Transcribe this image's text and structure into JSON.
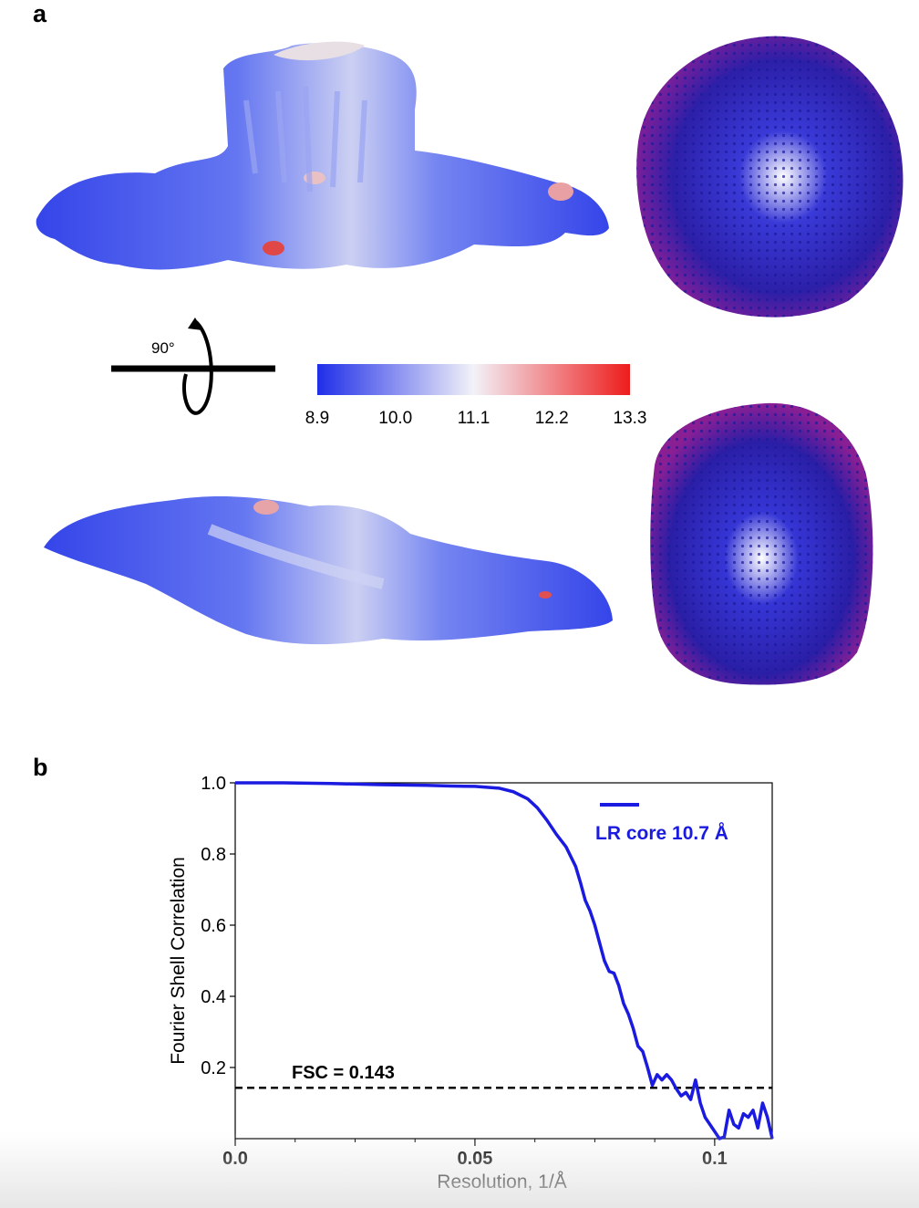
{
  "panels": {
    "a": {
      "label": "a"
    },
    "b": {
      "label": "b"
    }
  },
  "rotation_label": "90°",
  "colorbar": {
    "ticks": [
      "8.9",
      "10.0",
      "11.1",
      "12.2",
      "13.3"
    ],
    "colors": [
      "#1f2ee8",
      "#f2f2f8",
      "#ee1c1c"
    ]
  },
  "chart_data": {
    "type": "line",
    "xlabel": "Resolution, 1/Å",
    "ylabel": "Fourier Shell Correlation",
    "xlim": [
      0,
      0.112
    ],
    "ylim": [
      0,
      1.0
    ],
    "x_ticks": [
      "0.0",
      "0.05",
      "0.1"
    ],
    "y_ticks": [
      "0.2",
      "0.4",
      "0.6",
      "0.8",
      "1.0"
    ],
    "threshold": {
      "value": 0.143,
      "label": "FSC = 0.143"
    },
    "series": [
      {
        "name": "LR core 10.7 Å",
        "color": "#1a1ae0",
        "x": [
          0.0,
          0.01,
          0.02,
          0.03,
          0.04,
          0.045,
          0.05,
          0.055,
          0.058,
          0.061,
          0.063,
          0.065,
          0.067,
          0.069,
          0.071,
          0.072,
          0.073,
          0.074,
          0.075,
          0.076,
          0.077,
          0.078,
          0.079,
          0.08,
          0.081,
          0.082,
          0.083,
          0.084,
          0.085,
          0.086,
          0.087,
          0.088,
          0.089,
          0.09,
          0.091,
          0.092,
          0.093,
          0.094,
          0.095,
          0.096,
          0.097,
          0.098,
          0.099,
          0.1,
          0.101,
          0.102,
          0.103,
          0.104,
          0.105,
          0.106,
          0.107,
          0.108,
          0.109,
          0.11,
          0.111,
          0.112
        ],
        "y": [
          1.0,
          1.0,
          0.998,
          0.995,
          0.993,
          0.991,
          0.99,
          0.985,
          0.975,
          0.955,
          0.93,
          0.895,
          0.855,
          0.82,
          0.765,
          0.72,
          0.67,
          0.64,
          0.6,
          0.55,
          0.5,
          0.47,
          0.465,
          0.43,
          0.38,
          0.35,
          0.31,
          0.26,
          0.245,
          0.2,
          0.15,
          0.18,
          0.165,
          0.18,
          0.165,
          0.14,
          0.12,
          0.13,
          0.11,
          0.165,
          0.1,
          0.06,
          0.04,
          0.02,
          0.0,
          0.005,
          0.08,
          0.04,
          0.03,
          0.07,
          0.06,
          0.08,
          0.03,
          0.1,
          0.06,
          0.0
        ]
      }
    ]
  }
}
